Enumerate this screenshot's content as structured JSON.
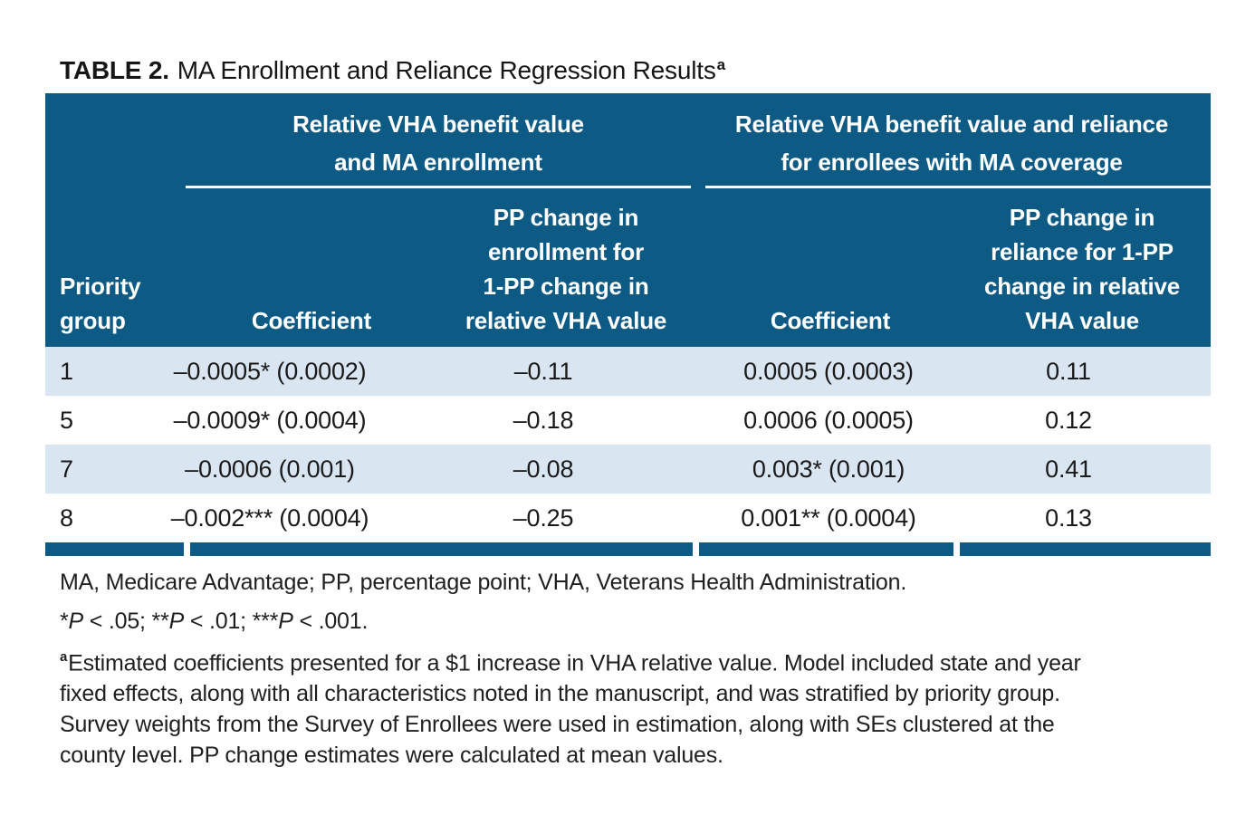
{
  "title": {
    "label": "TABLE 2.",
    "text": "MA Enrollment and Reliance Regression Results",
    "footnote_marker": "a"
  },
  "colors": {
    "header_blue": "#0d5a84",
    "row_alt": "#d9e6f2",
    "text": "#1a1a1a"
  },
  "table": {
    "group_headers": [
      {
        "lines": [
          "Relative VHA benefit value",
          "and MA enrollment"
        ]
      },
      {
        "lines": [
          "Relative VHA benefit value and reliance",
          "for enrollees with MA coverage"
        ]
      }
    ],
    "columns": [
      {
        "lines": [
          "Priority",
          "group"
        ]
      },
      {
        "lines": [
          "Coefficient"
        ]
      },
      {
        "lines": [
          "PP change in",
          "enrollment for",
          "1-PP change in",
          "relative VHA value"
        ]
      },
      {
        "lines": [
          "Coefficient"
        ]
      },
      {
        "lines": [
          "PP change in",
          "reliance for 1-PP",
          "change in relative",
          "VHA value"
        ]
      }
    ],
    "rows": [
      {
        "cells": [
          "1",
          "–0.0005* (0.0002)",
          "–0.11",
          "0.0005 (0.0003)",
          "0.11"
        ]
      },
      {
        "cells": [
          "5",
          "–0.0009* (0.0004)",
          "–0.18",
          "0.0006 (0.0005)",
          "0.12"
        ]
      },
      {
        "cells": [
          "7",
          "–0.0006 (0.001)",
          "–0.08",
          "0.003* (0.001)",
          "0.41"
        ]
      },
      {
        "cells": [
          "8",
          "–0.002*** (0.0004)",
          "–0.25",
          "0.001** (0.0004)",
          "0.13"
        ]
      }
    ]
  },
  "footnotes": {
    "abbreviations": "MA, Medicare Advantage; PP, percentage point; VHA, Veterans Health Administration.",
    "significance": {
      "s1": "*",
      "p1": "P",
      "t1": " < .05; **",
      "p2": "P",
      "t2": " < .01; ***",
      "p3": "P",
      "t3": " < .001."
    },
    "note_a": {
      "marker": "a",
      "lines": [
        "Estimated coefficients presented for a $1 increase in VHA relative value. Model included state and year",
        "fixed effects, along with all characteristics noted in the manuscript, and was stratified by priority group.",
        "Survey weights from the Survey of Enrollees were used in estimation, along with SEs clustered at the",
        "county level. PP change estimates were calculated at mean values."
      ]
    }
  }
}
